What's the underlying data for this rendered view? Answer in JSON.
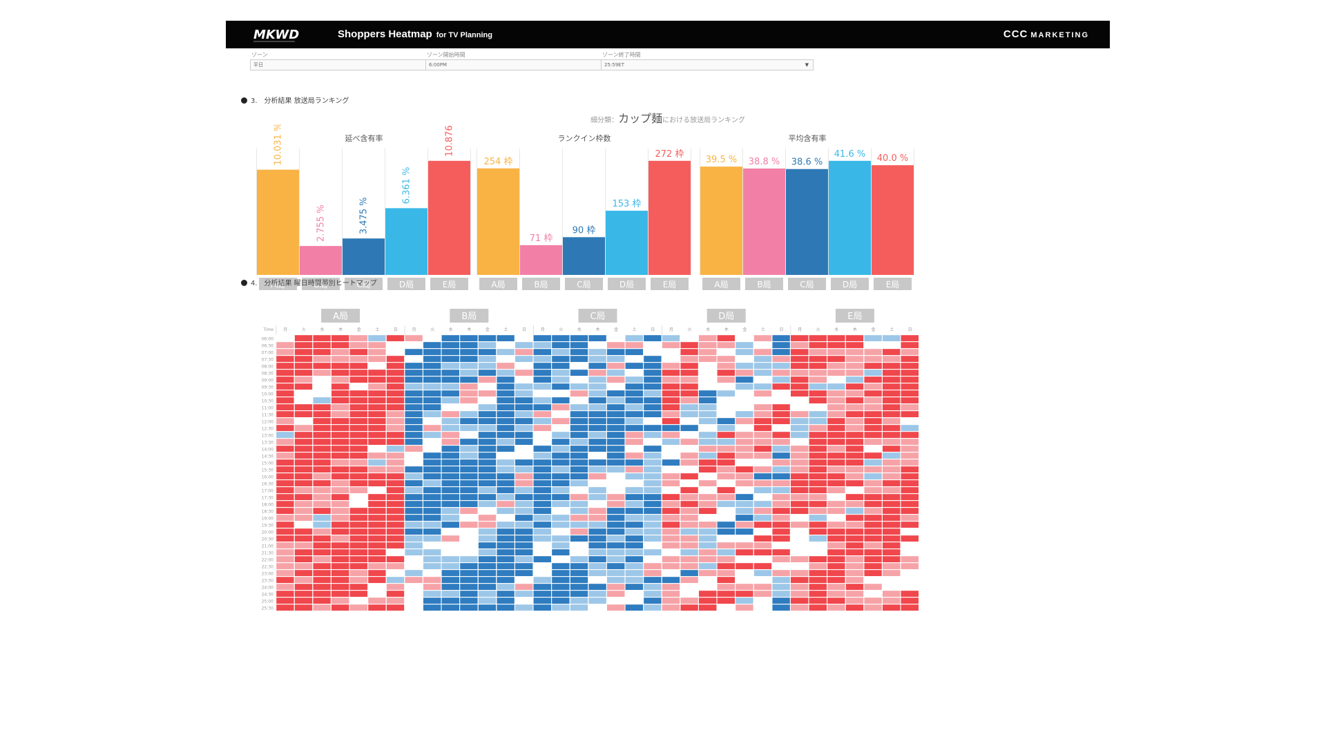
{
  "header": {
    "logo_text": "MKWD",
    "title": "Shoppers Heatmap",
    "title_sub": "for TV Planning",
    "brand": "CCC",
    "brand_small": "MARKETING"
  },
  "filters": [
    {
      "label": "ゾーン",
      "value": "平日"
    },
    {
      "label": "ゾーン開始時間",
      "value": "6:00PM"
    },
    {
      "label": "ゾーン終了時間",
      "value": "25:59ET"
    }
  ],
  "section3_title": "3.　分析結果 放送局ランキング",
  "ranking_title_prefix": "細分類：",
  "ranking_title_main": "カップ麺",
  "ranking_title_suffix": "における放送局ランキング",
  "section4_title": "4.　分析結果 曜日時間帯別ヒートマップ",
  "colors": {
    "A局": "#f9b345",
    "B局": "#f27fa6",
    "C局": "#2e79b5",
    "D局": "#39b8e8",
    "E局": "#f55d5d",
    "heat_dark_red": "#f0474d",
    "heat_light_red": "#f6a3a8",
    "heat_white": "#ffffff",
    "heat_light_blue": "#9dc7e8",
    "heat_dark_blue": "#2f7cc0"
  },
  "chart_data": [
    {
      "type": "bar",
      "title": "延べ含有率",
      "categories": [
        "A局",
        "B局",
        "C局",
        "D局",
        "E局"
      ],
      "values": [
        10.031,
        2.755,
        3.475,
        6.361,
        10.876
      ],
      "labels": [
        "10.031",
        "2.755",
        "3.475",
        "6.361",
        "10.876"
      ],
      "unit": "%",
      "label_orientation": "vertical"
    },
    {
      "type": "bar",
      "title": "ランクイン枠数",
      "categories": [
        "A局",
        "B局",
        "C局",
        "D局",
        "E局"
      ],
      "values": [
        254,
        71,
        90,
        153,
        272
      ],
      "labels": [
        "254",
        "71",
        "90",
        "153",
        "272"
      ],
      "unit": "枠",
      "label_orientation": "horizontal"
    },
    {
      "type": "bar",
      "title": "平均含有率",
      "categories": [
        "A局",
        "B局",
        "C局",
        "D局",
        "E局"
      ],
      "values": [
        39.5,
        38.8,
        38.6,
        41.6,
        40.0
      ],
      "labels": [
        "39.5",
        "38.8",
        "38.6",
        "41.6",
        "40.0"
      ],
      "unit": "%",
      "label_orientation": "horizontal"
    },
    {
      "type": "heatmap",
      "stations": [
        "A局",
        "B局",
        "C局",
        "D局",
        "E局"
      ],
      "days": [
        "月",
        "火",
        "水",
        "木",
        "金",
        "土",
        "日"
      ],
      "time_header": "Time",
      "times": [
        "06:00",
        "06:30",
        "07:00",
        "07:30",
        "08:00",
        "08:30",
        "09:00",
        "09:30",
        "10:00",
        "10:30",
        "11:00",
        "11:30",
        "12:00",
        "12:30",
        "13:00",
        "13:30",
        "14:00",
        "14:30",
        "15:00",
        "15:30",
        "16:00",
        "16:30",
        "17:00",
        "17:30",
        "18:00",
        "18:30",
        "19:00",
        "19:30",
        "20:00",
        "20:30",
        "21:00",
        "21:30",
        "22:00",
        "22:30",
        "23:00",
        "23:30",
        "24:00",
        "24:30",
        "25:00",
        "25:30"
      ],
      "scale": [
        "dark_red",
        "light_red",
        "white",
        "light_blue",
        "dark_blue"
      ],
      "station_bias": [
        1.3,
        -1.1,
        -0.9,
        0.2,
        1.0
      ],
      "note": ""
    }
  ]
}
